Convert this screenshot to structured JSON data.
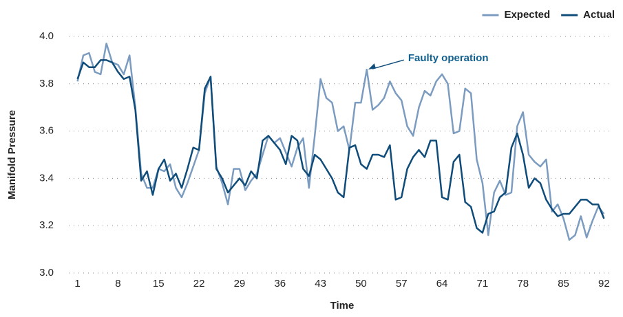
{
  "chart_data": {
    "type": "line",
    "xlabel": "Time",
    "ylabel": "Manifold Pressure",
    "x": [
      1,
      2,
      3,
      4,
      5,
      6,
      7,
      8,
      9,
      10,
      11,
      12,
      13,
      14,
      15,
      16,
      17,
      18,
      19,
      20,
      21,
      22,
      23,
      24,
      25,
      26,
      27,
      28,
      29,
      30,
      31,
      32,
      33,
      34,
      35,
      36,
      37,
      38,
      39,
      40,
      41,
      42,
      43,
      44,
      45,
      46,
      47,
      48,
      49,
      50,
      51,
      52,
      53,
      54,
      55,
      56,
      57,
      58,
      59,
      60,
      61,
      62,
      63,
      64,
      65,
      66,
      67,
      68,
      69,
      70,
      71,
      72,
      73,
      74,
      75,
      76,
      77,
      78,
      79,
      80,
      81,
      82,
      83,
      84,
      85,
      86,
      87,
      88,
      89,
      90,
      91,
      92
    ],
    "series": [
      {
        "name": "Expected",
        "color": "#7b9cc0",
        "values": [
          3.81,
          3.92,
          3.93,
          3.85,
          3.84,
          3.97,
          3.89,
          3.88,
          3.84,
          3.92,
          3.7,
          3.42,
          3.36,
          3.36,
          3.44,
          3.43,
          3.46,
          3.36,
          3.32,
          3.38,
          3.45,
          3.52,
          3.76,
          3.83,
          3.45,
          3.38,
          3.29,
          3.44,
          3.44,
          3.35,
          3.39,
          3.42,
          3.5,
          3.58,
          3.55,
          3.57,
          3.51,
          3.45,
          3.53,
          3.57,
          3.36,
          3.58,
          3.82,
          3.74,
          3.72,
          3.6,
          3.62,
          3.52,
          3.72,
          3.72,
          3.86,
          3.69,
          3.71,
          3.74,
          3.81,
          3.76,
          3.73,
          3.62,
          3.58,
          3.7,
          3.77,
          3.75,
          3.81,
          3.84,
          3.8,
          3.59,
          3.6,
          3.78,
          3.76,
          3.48,
          3.38,
          3.16,
          3.34,
          3.39,
          3.33,
          3.34,
          3.62,
          3.68,
          3.5,
          3.47,
          3.45,
          3.48,
          3.26,
          3.29,
          3.23,
          3.14,
          3.16,
          3.24,
          3.15,
          3.22,
          3.28,
          3.25
        ]
      },
      {
        "name": "Actual",
        "color": "#0f4c7a",
        "values": [
          3.82,
          3.89,
          3.87,
          3.87,
          3.9,
          3.9,
          3.89,
          3.85,
          3.82,
          3.83,
          3.69,
          3.39,
          3.43,
          3.33,
          3.44,
          3.48,
          3.39,
          3.42,
          3.36,
          3.44,
          3.53,
          3.52,
          3.78,
          3.83,
          3.44,
          3.4,
          3.34,
          3.37,
          3.4,
          3.37,
          3.43,
          3.4,
          3.56,
          3.58,
          3.55,
          3.52,
          3.46,
          3.58,
          3.56,
          3.44,
          3.41,
          3.5,
          3.48,
          3.44,
          3.4,
          3.34,
          3.32,
          3.53,
          3.54,
          3.46,
          3.44,
          3.5,
          3.5,
          3.49,
          3.54,
          3.31,
          3.32,
          3.44,
          3.49,
          3.52,
          3.49,
          3.56,
          3.56,
          3.32,
          3.31,
          3.47,
          3.5,
          3.3,
          3.28,
          3.19,
          3.17,
          3.25,
          3.26,
          3.32,
          3.34,
          3.53,
          3.59,
          3.5,
          3.36,
          3.4,
          3.38,
          3.31,
          3.27,
          3.24,
          3.25,
          3.25,
          3.28,
          3.31,
          3.31,
          3.29,
          3.29,
          3.23
        ]
      }
    ],
    "xlim": [
      -0.5,
      93.5
    ],
    "xticks": [
      1,
      8,
      15,
      22,
      29,
      36,
      43,
      50,
      57,
      64,
      71,
      78,
      85,
      92
    ],
    "ylim": [
      3.0,
      4.0
    ],
    "yticks": [
      {
        "value": 3.0,
        "label": "3.0"
      },
      {
        "value": 3.2,
        "label": "3.2"
      },
      {
        "value": 3.4,
        "label": "3.4"
      },
      {
        "value": 3.6,
        "label": "3.6"
      },
      {
        "value": 3.8,
        "label": "3.8"
      },
      {
        "value": 4.0,
        "label": "4.0"
      }
    ],
    "grid": true,
    "legend": "top-right",
    "annotations": [
      {
        "text": "Faulty operation",
        "x": 51,
        "y": 3.86
      }
    ]
  }
}
